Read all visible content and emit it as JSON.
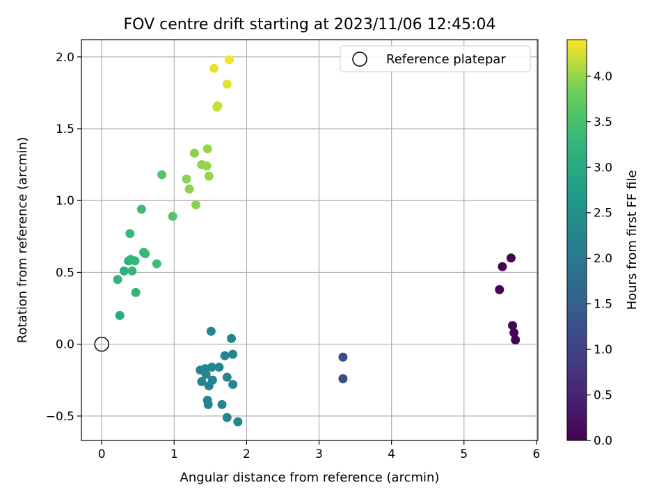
{
  "chart_data": {
    "type": "scatter",
    "title": "FOV centre drift starting at 2023/11/06 12:45:04",
    "xlabel": "Angular distance from reference (arcmin)",
    "ylabel": "Rotation from reference (arcmin)",
    "xlim": [
      -0.28,
      6.02
    ],
    "ylim": [
      -0.67,
      2.12
    ],
    "xticks": [
      0,
      1,
      2,
      3,
      4,
      5,
      6
    ],
    "xtick_labels": [
      "0",
      "1",
      "2",
      "3",
      "4",
      "5",
      "6"
    ],
    "yticks": [
      -0.5,
      0.0,
      0.5,
      1.0,
      1.5,
      2.0
    ],
    "ytick_labels": [
      "−0.5",
      "0.0",
      "0.5",
      "1.0",
      "1.5",
      "2.0"
    ],
    "grid": true,
    "legend": {
      "placement": "upper right",
      "entries": [
        "Reference platepar"
      ]
    },
    "reference_point": {
      "x": 0,
      "y": 0
    },
    "colorbar": {
      "label": "Hours from first FF file",
      "range": [
        0,
        4.4
      ],
      "colormap": "viridis",
      "ticks": [
        0.0,
        0.5,
        1.0,
        1.5,
        2.0,
        2.5,
        3.0,
        3.5,
        4.0
      ],
      "tick_labels": [
        "0.0",
        "0.5",
        "1.0",
        "1.5",
        "2.0",
        "2.5",
        "3.0",
        "3.5",
        "4.0"
      ]
    },
    "points": [
      {
        "x": 5.65,
        "y": 0.6,
        "c": 0.05
      },
      {
        "x": 5.53,
        "y": 0.54,
        "c": 0.05
      },
      {
        "x": 5.49,
        "y": 0.38,
        "c": 0.05
      },
      {
        "x": 5.67,
        "y": 0.13,
        "c": 0.05
      },
      {
        "x": 5.69,
        "y": 0.08,
        "c": 0.05
      },
      {
        "x": 5.71,
        "y": 0.03,
        "c": 0.05
      },
      {
        "x": 3.33,
        "y": -0.09,
        "c": 1.15
      },
      {
        "x": 3.33,
        "y": -0.24,
        "c": 1.15
      },
      {
        "x": 1.51,
        "y": 0.09,
        "c": 2.25
      },
      {
        "x": 1.79,
        "y": 0.04,
        "c": 2.25
      },
      {
        "x": 1.7,
        "y": -0.08,
        "c": 2.25
      },
      {
        "x": 1.81,
        "y": -0.07,
        "c": 2.25
      },
      {
        "x": 1.36,
        "y": -0.18,
        "c": 2.25
      },
      {
        "x": 1.43,
        "y": -0.17,
        "c": 2.25
      },
      {
        "x": 1.52,
        "y": -0.16,
        "c": 2.25
      },
      {
        "x": 1.62,
        "y": -0.16,
        "c": 2.25
      },
      {
        "x": 1.44,
        "y": -0.21,
        "c": 2.25
      },
      {
        "x": 1.38,
        "y": -0.26,
        "c": 2.25
      },
      {
        "x": 1.53,
        "y": -0.25,
        "c": 2.25
      },
      {
        "x": 1.48,
        "y": -0.29,
        "c": 2.25
      },
      {
        "x": 1.73,
        "y": -0.23,
        "c": 2.25
      },
      {
        "x": 1.81,
        "y": -0.28,
        "c": 2.25
      },
      {
        "x": 1.46,
        "y": -0.39,
        "c": 2.25
      },
      {
        "x": 1.47,
        "y": -0.42,
        "c": 2.25
      },
      {
        "x": 1.66,
        "y": -0.42,
        "c": 2.25
      },
      {
        "x": 1.73,
        "y": -0.51,
        "c": 2.25
      },
      {
        "x": 1.88,
        "y": -0.54,
        "c": 2.25
      },
      {
        "x": 0.25,
        "y": 0.2,
        "c": 3.05
      },
      {
        "x": 0.37,
        "y": 0.58,
        "c": 3.05
      },
      {
        "x": 0.31,
        "y": 0.51,
        "c": 3.15
      },
      {
        "x": 0.22,
        "y": 0.45,
        "c": 3.25
      },
      {
        "x": 0.47,
        "y": 0.36,
        "c": 3.25
      },
      {
        "x": 0.42,
        "y": 0.51,
        "c": 3.3
      },
      {
        "x": 0.4,
        "y": 0.59,
        "c": 3.3
      },
      {
        "x": 0.46,
        "y": 0.58,
        "c": 3.3
      },
      {
        "x": 0.58,
        "y": 0.64,
        "c": 3.3
      },
      {
        "x": 0.6,
        "y": 0.63,
        "c": 3.35
      },
      {
        "x": 0.76,
        "y": 0.56,
        "c": 3.4
      },
      {
        "x": 0.39,
        "y": 0.77,
        "c": 3.35
      },
      {
        "x": 0.55,
        "y": 0.94,
        "c": 3.4
      },
      {
        "x": 0.98,
        "y": 0.89,
        "c": 3.6
      },
      {
        "x": 0.83,
        "y": 1.18,
        "c": 3.6
      },
      {
        "x": 1.17,
        "y": 1.15,
        "c": 3.95
      },
      {
        "x": 1.21,
        "y": 1.08,
        "c": 3.95
      },
      {
        "x": 1.3,
        "y": 0.97,
        "c": 3.95
      },
      {
        "x": 1.38,
        "y": 1.25,
        "c": 3.95
      },
      {
        "x": 1.45,
        "y": 1.24,
        "c": 4.0
      },
      {
        "x": 1.48,
        "y": 1.17,
        "c": 4.0
      },
      {
        "x": 1.28,
        "y": 1.33,
        "c": 3.95
      },
      {
        "x": 1.46,
        "y": 1.36,
        "c": 4.0
      },
      {
        "x": 1.6,
        "y": 1.66,
        "c": 4.2
      },
      {
        "x": 1.59,
        "y": 1.65,
        "c": 4.2
      },
      {
        "x": 1.73,
        "y": 1.81,
        "c": 4.3
      },
      {
        "x": 1.55,
        "y": 1.92,
        "c": 4.3
      },
      {
        "x": 1.76,
        "y": 1.98,
        "c": 4.35
      }
    ]
  }
}
